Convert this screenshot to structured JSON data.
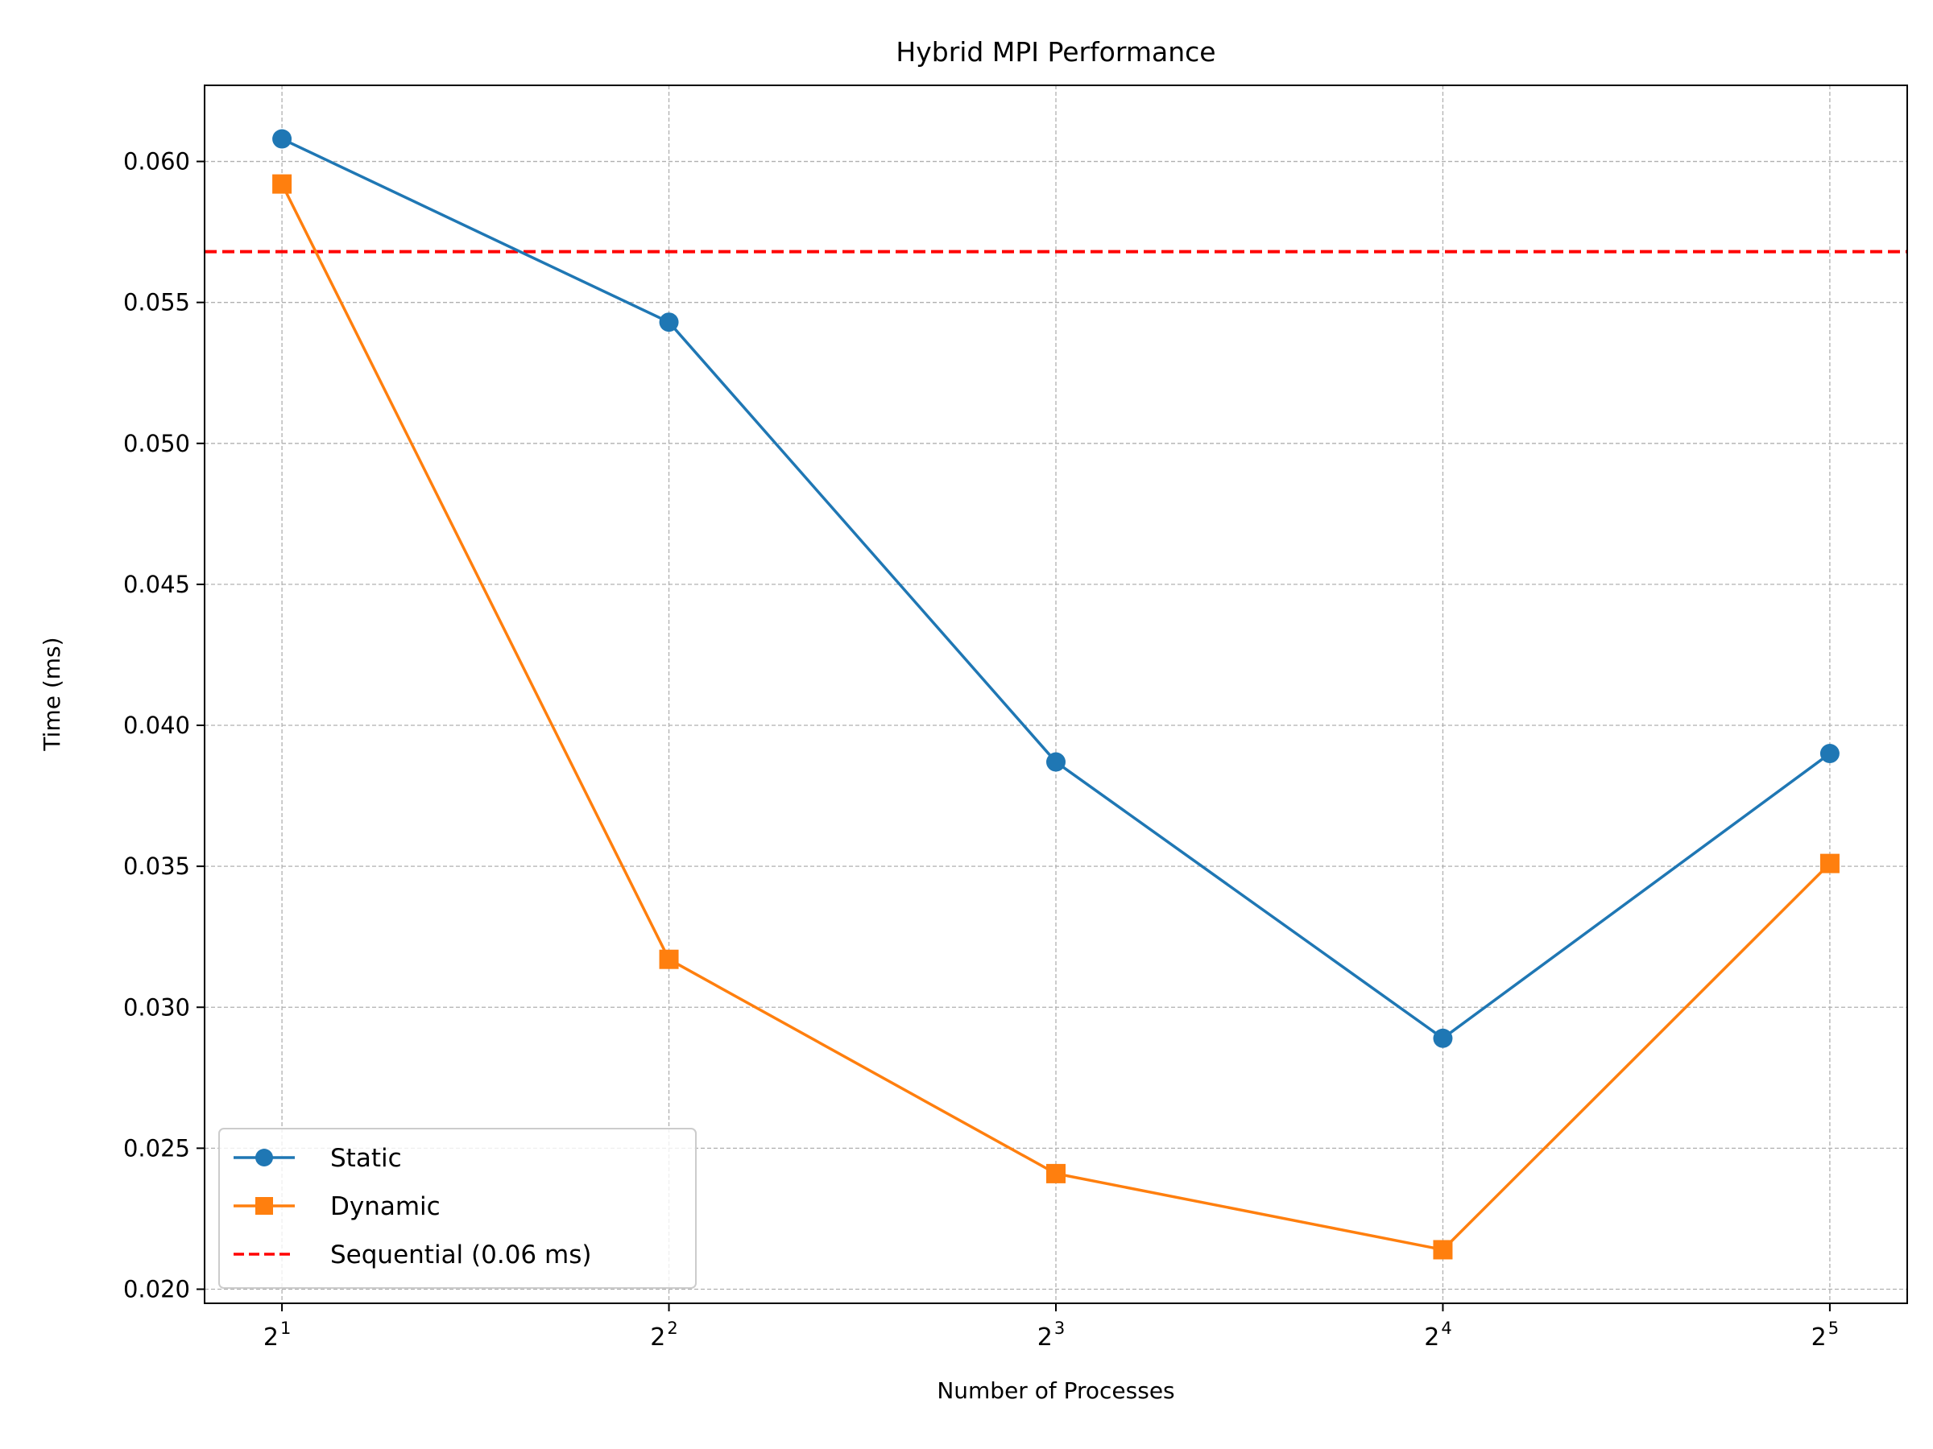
{
  "chart_data": {
    "type": "line",
    "title": "Hybrid MPI Performance",
    "xlabel": "Number of Processes",
    "ylabel": "Time (ms)",
    "x_scale": "log2",
    "x": [
      2,
      4,
      8,
      16,
      32
    ],
    "x_tick_labels": [
      {
        "base": "2",
        "exp": "1"
      },
      {
        "base": "2",
        "exp": "2"
      },
      {
        "base": "2",
        "exp": "3"
      },
      {
        "base": "2",
        "exp": "4"
      },
      {
        "base": "2",
        "exp": "5"
      }
    ],
    "y_ticks": [
      0.02,
      0.025,
      0.03,
      0.035,
      0.04,
      0.045,
      0.05,
      0.055,
      0.06
    ],
    "y_tick_labels": [
      "0.020",
      "0.025",
      "0.030",
      "0.035",
      "0.040",
      "0.045",
      "0.050",
      "0.055",
      "0.060"
    ],
    "ylim": [
      0.0195,
      0.0627
    ],
    "xlim_exponent": [
      0.8,
      5.2
    ],
    "grid": true,
    "legend_position": "lower-left",
    "series": [
      {
        "name": "Static",
        "values": [
          0.0608,
          0.0543,
          0.0387,
          0.0289,
          0.039
        ],
        "color": "#1f77b4",
        "marker": "circle",
        "line_style": "solid"
      },
      {
        "name": "Dynamic",
        "values": [
          0.0592,
          0.0317,
          0.0241,
          0.0214,
          0.0351
        ],
        "color": "#ff7f0e",
        "marker": "square",
        "line_style": "solid"
      }
    ],
    "reference_lines": [
      {
        "name": "Sequential (0.06 ms)",
        "y": 0.0568,
        "color": "#ff0000",
        "line_style": "dashed"
      }
    ]
  }
}
